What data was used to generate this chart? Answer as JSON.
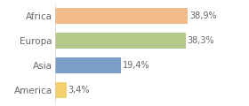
{
  "categories": [
    "America",
    "Asia",
    "Europa",
    "Africa"
  ],
  "values": [
    3.4,
    19.4,
    38.3,
    38.9
  ],
  "labels": [
    "3,4%",
    "19,4%",
    "38,3%",
    "38,9%"
  ],
  "bar_colors": [
    "#f2d06b",
    "#7b9ec9",
    "#b5c98a",
    "#f2bb8a"
  ],
  "background_color": "#ffffff",
  "xlim": [
    0,
    48
  ],
  "bar_height": 0.65,
  "label_fontsize": 7,
  "tick_fontsize": 7.5,
  "tick_color": "#666666",
  "label_color": "#666666"
}
